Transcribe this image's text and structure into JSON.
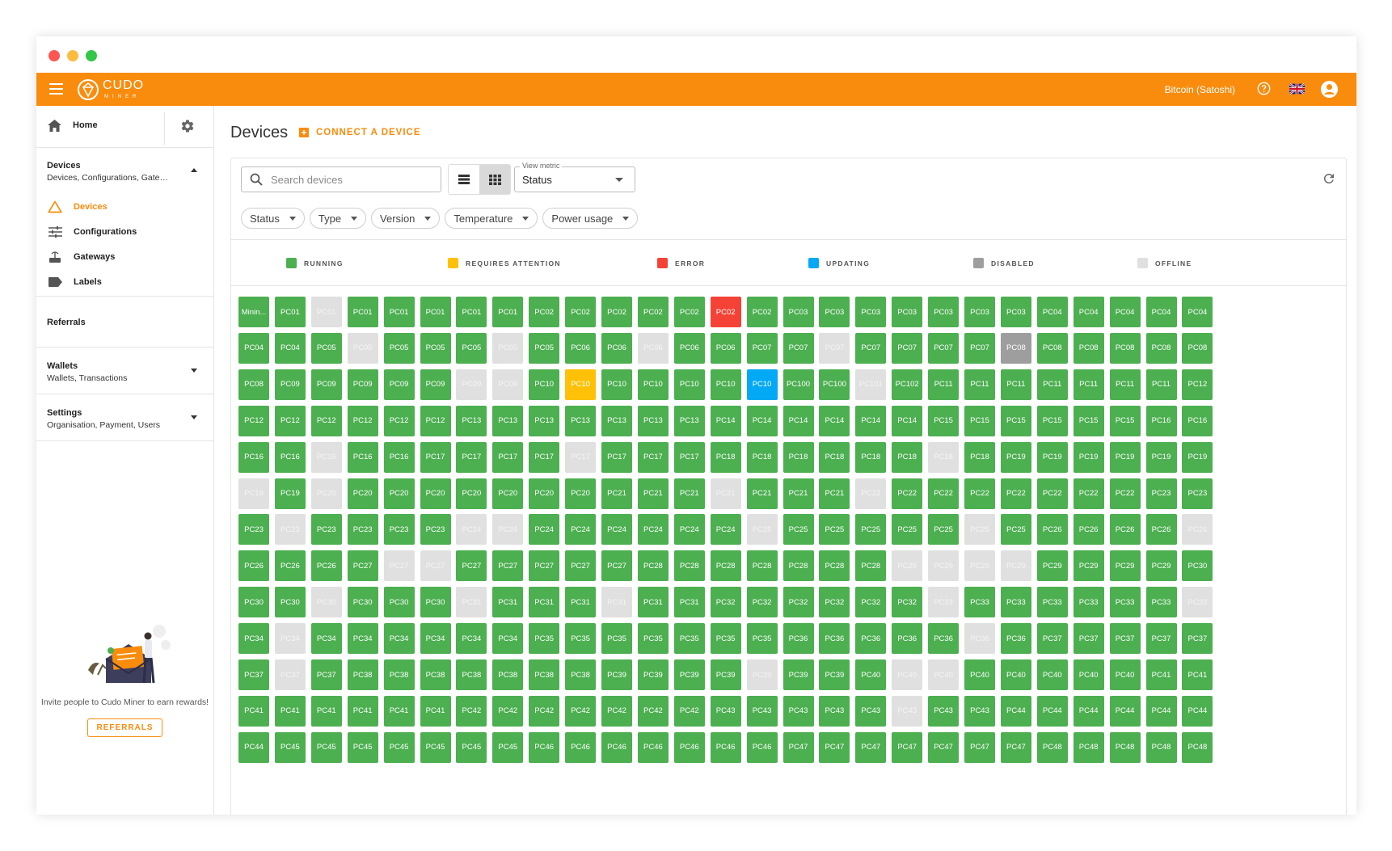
{
  "appbar": {
    "logo_text": "CUDO",
    "logo_sub": "MINER",
    "currency": "Bitcoin (Satoshi)"
  },
  "sidebar": {
    "home": "Home",
    "devices_group": {
      "title": "Devices",
      "subtitle": "Devices, Configurations, Gateways, Labels"
    },
    "items": [
      {
        "label": "Devices",
        "icon": "warning-triangle-icon",
        "active": true
      },
      {
        "label": "Configurations",
        "icon": "sliders-icon",
        "active": false
      },
      {
        "label": "Gateways",
        "icon": "router-icon",
        "active": false
      },
      {
        "label": "Labels",
        "icon": "label-icon",
        "active": false
      }
    ],
    "referrals": "Referrals",
    "wallets_group": {
      "title": "Wallets",
      "subtitle": "Wallets, Transactions"
    },
    "settings_group": {
      "title": "Settings",
      "subtitle": "Organisation, Payment, Users"
    },
    "promo": {
      "text": "Invite people to Cudo Miner to earn rewards!",
      "button": "REFERRALS"
    }
  },
  "main": {
    "title": "Devices",
    "connect_button": "CONNECT A DEVICE",
    "search_placeholder": "Search devices",
    "view_metric_label": "View metric",
    "view_metric_value": "Status",
    "filters": [
      "Status",
      "Type",
      "Version",
      "Temperature",
      "Power usage"
    ],
    "legend": [
      {
        "key": "R",
        "label": "RUNNING",
        "color": "#4caf50"
      },
      {
        "key": "A",
        "label": "REQUIRES ATTENTION",
        "color": "#ffc107"
      },
      {
        "key": "E",
        "label": "ERROR",
        "color": "#f44336"
      },
      {
        "key": "U",
        "label": "UPDATING",
        "color": "#03a9f4"
      },
      {
        "key": "D",
        "label": "DISABLED",
        "color": "#9e9e9e"
      },
      {
        "key": "O",
        "label": "OFFLINE",
        "color": "#e0e0e0"
      }
    ]
  },
  "devices": [
    {
      "n": "Minin...",
      "s": "R"
    },
    {
      "n": "PC01",
      "s": "R"
    },
    {
      "n": "PC01",
      "s": "O"
    },
    {
      "n": "PC01",
      "s": "R"
    },
    {
      "n": "PC01",
      "s": "R"
    },
    {
      "n": "PC01",
      "s": "R"
    },
    {
      "n": "PC01",
      "s": "R"
    },
    {
      "n": "PC01",
      "s": "R"
    },
    {
      "n": "PC02",
      "s": "R"
    },
    {
      "n": "PC02",
      "s": "R"
    },
    {
      "n": "PC02",
      "s": "R"
    },
    {
      "n": "PC02",
      "s": "R"
    },
    {
      "n": "PC02",
      "s": "R"
    },
    {
      "n": "PC02",
      "s": "E"
    },
    {
      "n": "PC02",
      "s": "R"
    },
    {
      "n": "PC03",
      "s": "R"
    },
    {
      "n": "PC03",
      "s": "R"
    },
    {
      "n": "PC03",
      "s": "R"
    },
    {
      "n": "PC03",
      "s": "R"
    },
    {
      "n": "PC03",
      "s": "R"
    },
    {
      "n": "PC03",
      "s": "R"
    },
    {
      "n": "PC03",
      "s": "R"
    },
    {
      "n": "PC04",
      "s": "R"
    },
    {
      "n": "PC04",
      "s": "R"
    },
    {
      "n": "PC04",
      "s": "R"
    },
    {
      "n": "PC04",
      "s": "R"
    },
    {
      "n": "PC04",
      "s": "R"
    },
    {
      "n": "PC04",
      "s": "R"
    },
    {
      "n": "PC04",
      "s": "R"
    },
    {
      "n": "PC05",
      "s": "R"
    },
    {
      "n": "PC05",
      "s": "O"
    },
    {
      "n": "PC05",
      "s": "R"
    },
    {
      "n": "PC05",
      "s": "R"
    },
    {
      "n": "PC05",
      "s": "R"
    },
    {
      "n": "PC05",
      "s": "O"
    },
    {
      "n": "PC05",
      "s": "R"
    },
    {
      "n": "PC06",
      "s": "R"
    },
    {
      "n": "PC06",
      "s": "R"
    },
    {
      "n": "PC06",
      "s": "O"
    },
    {
      "n": "PC06",
      "s": "R"
    },
    {
      "n": "PC06",
      "s": "R"
    },
    {
      "n": "PC07",
      "s": "R"
    },
    {
      "n": "PC07",
      "s": "R"
    },
    {
      "n": "PC07",
      "s": "O"
    },
    {
      "n": "PC07",
      "s": "R"
    },
    {
      "n": "PC07",
      "s": "R"
    },
    {
      "n": "PC07",
      "s": "R"
    },
    {
      "n": "PC07",
      "s": "R"
    },
    {
      "n": "PC08",
      "s": "D"
    },
    {
      "n": "PC08",
      "s": "R"
    },
    {
      "n": "PC08",
      "s": "R"
    },
    {
      "n": "PC08",
      "s": "R"
    },
    {
      "n": "PC08",
      "s": "R"
    },
    {
      "n": "PC08",
      "s": "R"
    },
    {
      "n": "PC08",
      "s": "R"
    },
    {
      "n": "PC09",
      "s": "R"
    },
    {
      "n": "PC09",
      "s": "R"
    },
    {
      "n": "PC09",
      "s": "R"
    },
    {
      "n": "PC09",
      "s": "R"
    },
    {
      "n": "PC09",
      "s": "R"
    },
    {
      "n": "PC09",
      "s": "O"
    },
    {
      "n": "PC09",
      "s": "O"
    },
    {
      "n": "PC10",
      "s": "R"
    },
    {
      "n": "PC10",
      "s": "A"
    },
    {
      "n": "PC10",
      "s": "R"
    },
    {
      "n": "PC10",
      "s": "R"
    },
    {
      "n": "PC10",
      "s": "R"
    },
    {
      "n": "PC10",
      "s": "R"
    },
    {
      "n": "PC10",
      "s": "U"
    },
    {
      "n": "PC100",
      "s": "R"
    },
    {
      "n": "PC100",
      "s": "R"
    },
    {
      "n": "PC101",
      "s": "O"
    },
    {
      "n": "PC102",
      "s": "R"
    },
    {
      "n": "PC11",
      "s": "R"
    },
    {
      "n": "PC11",
      "s": "R"
    },
    {
      "n": "PC11",
      "s": "R"
    },
    {
      "n": "PC11",
      "s": "R"
    },
    {
      "n": "PC11",
      "s": "R"
    },
    {
      "n": "PC11",
      "s": "R"
    },
    {
      "n": "PC11",
      "s": "R"
    },
    {
      "n": "PC12",
      "s": "R"
    },
    {
      "n": "PC12",
      "s": "R"
    },
    {
      "n": "PC12",
      "s": "R"
    },
    {
      "n": "PC12",
      "s": "R"
    },
    {
      "n": "PC12",
      "s": "R"
    },
    {
      "n": "PC12",
      "s": "R"
    },
    {
      "n": "PC12",
      "s": "R"
    },
    {
      "n": "PC13",
      "s": "R"
    },
    {
      "n": "PC13",
      "s": "R"
    },
    {
      "n": "PC13",
      "s": "R"
    },
    {
      "n": "PC13",
      "s": "R"
    },
    {
      "n": "PC13",
      "s": "R"
    },
    {
      "n": "PC13",
      "s": "R"
    },
    {
      "n": "PC13",
      "s": "R"
    },
    {
      "n": "PC14",
      "s": "R"
    },
    {
      "n": "PC14",
      "s": "R"
    },
    {
      "n": "PC14",
      "s": "R"
    },
    {
      "n": "PC14",
      "s": "R"
    },
    {
      "n": "PC14",
      "s": "R"
    },
    {
      "n": "PC14",
      "s": "R"
    },
    {
      "n": "PC15",
      "s": "R"
    },
    {
      "n": "PC15",
      "s": "R"
    },
    {
      "n": "PC15",
      "s": "R"
    },
    {
      "n": "PC15",
      "s": "R"
    },
    {
      "n": "PC15",
      "s": "R"
    },
    {
      "n": "PC15",
      "s": "R"
    },
    {
      "n": "PC16",
      "s": "R"
    },
    {
      "n": "PC16",
      "s": "R"
    },
    {
      "n": "PC16",
      "s": "R"
    },
    {
      "n": "PC16",
      "s": "R"
    },
    {
      "n": "PC16",
      "s": "O"
    },
    {
      "n": "PC16",
      "s": "R"
    },
    {
      "n": "PC16",
      "s": "R"
    },
    {
      "n": "PC17",
      "s": "R"
    },
    {
      "n": "PC17",
      "s": "R"
    },
    {
      "n": "PC17",
      "s": "R"
    },
    {
      "n": "PC17",
      "s": "R"
    },
    {
      "n": "PC17",
      "s": "O"
    },
    {
      "n": "PC17",
      "s": "R"
    },
    {
      "n": "PC17",
      "s": "R"
    },
    {
      "n": "PC17",
      "s": "R"
    },
    {
      "n": "PC18",
      "s": "R"
    },
    {
      "n": "PC18",
      "s": "R"
    },
    {
      "n": "PC18",
      "s": "R"
    },
    {
      "n": "PC18",
      "s": "R"
    },
    {
      "n": "PC18",
      "s": "R"
    },
    {
      "n": "PC18",
      "s": "R"
    },
    {
      "n": "PC18",
      "s": "O"
    },
    {
      "n": "PC18",
      "s": "R"
    },
    {
      "n": "PC19",
      "s": "R"
    },
    {
      "n": "PC19",
      "s": "R"
    },
    {
      "n": "PC19",
      "s": "R"
    },
    {
      "n": "PC19",
      "s": "R"
    },
    {
      "n": "PC19",
      "s": "R"
    },
    {
      "n": "PC19",
      "s": "R"
    },
    {
      "n": "PC19",
      "s": "O"
    },
    {
      "n": "PC19",
      "s": "R"
    },
    {
      "n": "PC20",
      "s": "O"
    },
    {
      "n": "PC20",
      "s": "R"
    },
    {
      "n": "PC20",
      "s": "R"
    },
    {
      "n": "PC20",
      "s": "R"
    },
    {
      "n": "PC20",
      "s": "R"
    },
    {
      "n": "PC20",
      "s": "R"
    },
    {
      "n": "PC20",
      "s": "R"
    },
    {
      "n": "PC20",
      "s": "R"
    },
    {
      "n": "PC21",
      "s": "R"
    },
    {
      "n": "PC21",
      "s": "R"
    },
    {
      "n": "PC21",
      "s": "R"
    },
    {
      "n": "PC21",
      "s": "O"
    },
    {
      "n": "PC21",
      "s": "R"
    },
    {
      "n": "PC21",
      "s": "R"
    },
    {
      "n": "PC21",
      "s": "R"
    },
    {
      "n": "PC22",
      "s": "O"
    },
    {
      "n": "PC22",
      "s": "R"
    },
    {
      "n": "PC22",
      "s": "R"
    },
    {
      "n": "PC22",
      "s": "R"
    },
    {
      "n": "PC22",
      "s": "R"
    },
    {
      "n": "PC22",
      "s": "R"
    },
    {
      "n": "PC22",
      "s": "R"
    },
    {
      "n": "PC22",
      "s": "R"
    },
    {
      "n": "PC23",
      "s": "R"
    },
    {
      "n": "PC23",
      "s": "R"
    },
    {
      "n": "PC23",
      "s": "R"
    },
    {
      "n": "PC23",
      "s": "O"
    },
    {
      "n": "PC23",
      "s": "R"
    },
    {
      "n": "PC23",
      "s": "R"
    },
    {
      "n": "PC23",
      "s": "R"
    },
    {
      "n": "PC23",
      "s": "R"
    },
    {
      "n": "PC24",
      "s": "O"
    },
    {
      "n": "PC24",
      "s": "O"
    },
    {
      "n": "PC24",
      "s": "R"
    },
    {
      "n": "PC24",
      "s": "R"
    },
    {
      "n": "PC24",
      "s": "R"
    },
    {
      "n": "PC24",
      "s": "R"
    },
    {
      "n": "PC24",
      "s": "R"
    },
    {
      "n": "PC24",
      "s": "R"
    },
    {
      "n": "PC25",
      "s": "O"
    },
    {
      "n": "PC25",
      "s": "R"
    },
    {
      "n": "PC25",
      "s": "R"
    },
    {
      "n": "PC25",
      "s": "R"
    },
    {
      "n": "PC25",
      "s": "R"
    },
    {
      "n": "PC25",
      "s": "R"
    },
    {
      "n": "PC25",
      "s": "O"
    },
    {
      "n": "PC25",
      "s": "R"
    },
    {
      "n": "PC26",
      "s": "R"
    },
    {
      "n": "PC26",
      "s": "R"
    },
    {
      "n": "PC26",
      "s": "R"
    },
    {
      "n": "PC26",
      "s": "R"
    },
    {
      "n": "PC26",
      "s": "O"
    },
    {
      "n": "PC26",
      "s": "R"
    },
    {
      "n": "PC26",
      "s": "R"
    },
    {
      "n": "PC26",
      "s": "R"
    },
    {
      "n": "PC27",
      "s": "R"
    },
    {
      "n": "PC27",
      "s": "O"
    },
    {
      "n": "PC27",
      "s": "O"
    },
    {
      "n": "PC27",
      "s": "R"
    },
    {
      "n": "PC27",
      "s": "R"
    },
    {
      "n": "PC27",
      "s": "R"
    },
    {
      "n": "PC27",
      "s": "R"
    },
    {
      "n": "PC27",
      "s": "R"
    },
    {
      "n": "PC28",
      "s": "R"
    },
    {
      "n": "PC28",
      "s": "R"
    },
    {
      "n": "PC28",
      "s": "R"
    },
    {
      "n": "PC28",
      "s": "R"
    },
    {
      "n": "PC28",
      "s": "R"
    },
    {
      "n": "PC28",
      "s": "R"
    },
    {
      "n": "PC28",
      "s": "R"
    },
    {
      "n": "PC29",
      "s": "O"
    },
    {
      "n": "PC29",
      "s": "O"
    },
    {
      "n": "PC29",
      "s": "O"
    },
    {
      "n": "PC29",
      "s": "O"
    },
    {
      "n": "PC29",
      "s": "R"
    },
    {
      "n": "PC29",
      "s": "R"
    },
    {
      "n": "PC29",
      "s": "R"
    },
    {
      "n": "PC29",
      "s": "R"
    },
    {
      "n": "PC30",
      "s": "R"
    },
    {
      "n": "PC30",
      "s": "R"
    },
    {
      "n": "PC30",
      "s": "R"
    },
    {
      "n": "PC30",
      "s": "O"
    },
    {
      "n": "PC30",
      "s": "R"
    },
    {
      "n": "PC30",
      "s": "R"
    },
    {
      "n": "PC30",
      "s": "R"
    },
    {
      "n": "PC31",
      "s": "O"
    },
    {
      "n": "PC31",
      "s": "R"
    },
    {
      "n": "PC31",
      "s": "R"
    },
    {
      "n": "PC31",
      "s": "R"
    },
    {
      "n": "PC31",
      "s": "O"
    },
    {
      "n": "PC31",
      "s": "R"
    },
    {
      "n": "PC31",
      "s": "R"
    },
    {
      "n": "PC32",
      "s": "R"
    },
    {
      "n": "PC32",
      "s": "R"
    },
    {
      "n": "PC32",
      "s": "R"
    },
    {
      "n": "PC32",
      "s": "R"
    },
    {
      "n": "PC32",
      "s": "R"
    },
    {
      "n": "PC32",
      "s": "R"
    },
    {
      "n": "PC33",
      "s": "O"
    },
    {
      "n": "PC33",
      "s": "R"
    },
    {
      "n": "PC33",
      "s": "R"
    },
    {
      "n": "PC33",
      "s": "R"
    },
    {
      "n": "PC33",
      "s": "R"
    },
    {
      "n": "PC33",
      "s": "R"
    },
    {
      "n": "PC33",
      "s": "R"
    },
    {
      "n": "PC33",
      "s": "O"
    },
    {
      "n": "PC34",
      "s": "R"
    },
    {
      "n": "PC34",
      "s": "O"
    },
    {
      "n": "PC34",
      "s": "R"
    },
    {
      "n": "PC34",
      "s": "R"
    },
    {
      "n": "PC34",
      "s": "R"
    },
    {
      "n": "PC34",
      "s": "R"
    },
    {
      "n": "PC34",
      "s": "R"
    },
    {
      "n": "PC34",
      "s": "R"
    },
    {
      "n": "PC35",
      "s": "R"
    },
    {
      "n": "PC35",
      "s": "R"
    },
    {
      "n": "PC35",
      "s": "R"
    },
    {
      "n": "PC35",
      "s": "R"
    },
    {
      "n": "PC35",
      "s": "R"
    },
    {
      "n": "PC35",
      "s": "R"
    },
    {
      "n": "PC35",
      "s": "R"
    },
    {
      "n": "PC36",
      "s": "R"
    },
    {
      "n": "PC36",
      "s": "R"
    },
    {
      "n": "PC36",
      "s": "R"
    },
    {
      "n": "PC36",
      "s": "R"
    },
    {
      "n": "PC36",
      "s": "R"
    },
    {
      "n": "PC36",
      "s": "O"
    },
    {
      "n": "PC36",
      "s": "R"
    },
    {
      "n": "PC37",
      "s": "R"
    },
    {
      "n": "PC37",
      "s": "R"
    },
    {
      "n": "PC37",
      "s": "R"
    },
    {
      "n": "PC37",
      "s": "R"
    },
    {
      "n": "PC37",
      "s": "R"
    },
    {
      "n": "PC37",
      "s": "R"
    },
    {
      "n": "PC37",
      "s": "O"
    },
    {
      "n": "PC37",
      "s": "R"
    },
    {
      "n": "PC38",
      "s": "R"
    },
    {
      "n": "PC38",
      "s": "R"
    },
    {
      "n": "PC38",
      "s": "R"
    },
    {
      "n": "PC38",
      "s": "R"
    },
    {
      "n": "PC38",
      "s": "R"
    },
    {
      "n": "PC38",
      "s": "R"
    },
    {
      "n": "PC38",
      "s": "R"
    },
    {
      "n": "PC39",
      "s": "R"
    },
    {
      "n": "PC39",
      "s": "R"
    },
    {
      "n": "PC39",
      "s": "R"
    },
    {
      "n": "PC39",
      "s": "R"
    },
    {
      "n": "PC39",
      "s": "O"
    },
    {
      "n": "PC39",
      "s": "R"
    },
    {
      "n": "PC39",
      "s": "R"
    },
    {
      "n": "PC40",
      "s": "R"
    },
    {
      "n": "PC40",
      "s": "O"
    },
    {
      "n": "PC40",
      "s": "O"
    },
    {
      "n": "PC40",
      "s": "R"
    },
    {
      "n": "PC40",
      "s": "R"
    },
    {
      "n": "PC40",
      "s": "R"
    },
    {
      "n": "PC40",
      "s": "R"
    },
    {
      "n": "PC40",
      "s": "R"
    },
    {
      "n": "PC41",
      "s": "R"
    },
    {
      "n": "PC41",
      "s": "R"
    },
    {
      "n": "PC41",
      "s": "R"
    },
    {
      "n": "PC41",
      "s": "R"
    },
    {
      "n": "PC41",
      "s": "R"
    },
    {
      "n": "PC41",
      "s": "R"
    },
    {
      "n": "PC41",
      "s": "R"
    },
    {
      "n": "PC41",
      "s": "R"
    },
    {
      "n": "PC42",
      "s": "R"
    },
    {
      "n": "PC42",
      "s": "R"
    },
    {
      "n": "PC42",
      "s": "R"
    },
    {
      "n": "PC42",
      "s": "R"
    },
    {
      "n": "PC42",
      "s": "R"
    },
    {
      "n": "PC42",
      "s": "R"
    },
    {
      "n": "PC42",
      "s": "R"
    },
    {
      "n": "PC43",
      "s": "R"
    },
    {
      "n": "PC43",
      "s": "R"
    },
    {
      "n": "PC43",
      "s": "R"
    },
    {
      "n": "PC43",
      "s": "R"
    },
    {
      "n": "PC43",
      "s": "R"
    },
    {
      "n": "PC43",
      "s": "O"
    },
    {
      "n": "PC43",
      "s": "R"
    },
    {
      "n": "PC43",
      "s": "R"
    },
    {
      "n": "PC44",
      "s": "R"
    },
    {
      "n": "PC44",
      "s": "R"
    },
    {
      "n": "PC44",
      "s": "R"
    },
    {
      "n": "PC44",
      "s": "R"
    },
    {
      "n": "PC44",
      "s": "R"
    },
    {
      "n": "PC44",
      "s": "R"
    },
    {
      "n": "PC44",
      "s": "R"
    },
    {
      "n": "PC45",
      "s": "R"
    },
    {
      "n": "PC45",
      "s": "R"
    },
    {
      "n": "PC45",
      "s": "R"
    },
    {
      "n": "PC45",
      "s": "R"
    },
    {
      "n": "PC45",
      "s": "R"
    },
    {
      "n": "PC45",
      "s": "R"
    },
    {
      "n": "PC45",
      "s": "R"
    },
    {
      "n": "PC46",
      "s": "R"
    },
    {
      "n": "PC46",
      "s": "R"
    },
    {
      "n": "PC46",
      "s": "R"
    },
    {
      "n": "PC46",
      "s": "R"
    },
    {
      "n": "PC46",
      "s": "R"
    },
    {
      "n": "PC46",
      "s": "R"
    },
    {
      "n": "PC46",
      "s": "R"
    },
    {
      "n": "PC47",
      "s": "R"
    },
    {
      "n": "PC47",
      "s": "R"
    },
    {
      "n": "PC47",
      "s": "R"
    },
    {
      "n": "PC47",
      "s": "R"
    },
    {
      "n": "PC47",
      "s": "R"
    },
    {
      "n": "PC47",
      "s": "R"
    },
    {
      "n": "PC47",
      "s": "R"
    },
    {
      "n": "PC48",
      "s": "R"
    },
    {
      "n": "PC48",
      "s": "R"
    },
    {
      "n": "PC48",
      "s": "R"
    },
    {
      "n": "PC48",
      "s": "R"
    },
    {
      "n": "PC48",
      "s": "R"
    }
  ]
}
